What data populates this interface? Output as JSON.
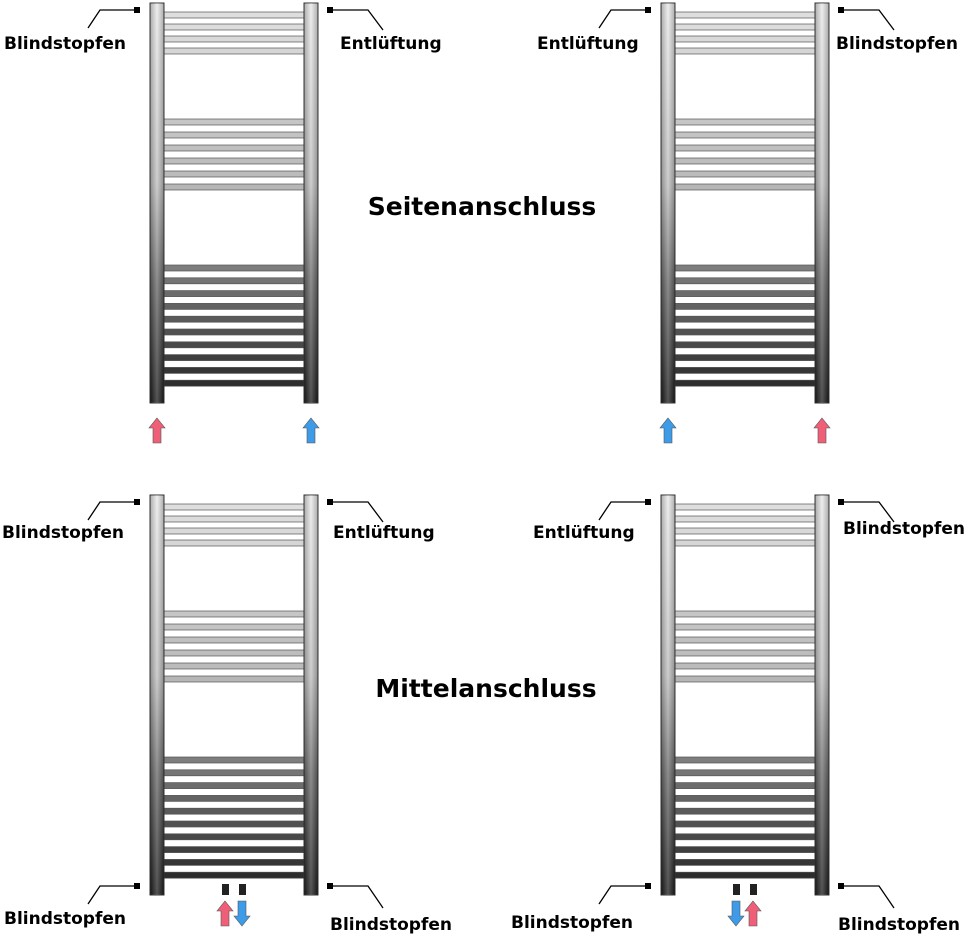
{
  "titles": {
    "side": "Seitenanschluss",
    "center": "Mittelanschluss"
  },
  "colors": {
    "supply": "#ef5f78",
    "return": "#3d9be8",
    "rail_light": "#e6e6e6",
    "rail_dark": "#1c1c1c"
  },
  "diagrams": [
    {
      "connection": "side",
      "labels": {
        "top_left": "Blindstopfen",
        "top_right": "Entlüftung"
      },
      "arrows": [
        "supply-up",
        "return-up"
      ]
    },
    {
      "connection": "side",
      "labels": {
        "top_left": "Entlüftung",
        "top_right": "Blindstopfen"
      },
      "arrows": [
        "return-up",
        "supply-up"
      ]
    },
    {
      "connection": "center",
      "labels": {
        "top_left": "Blindstopfen",
        "top_right": "Entlüftung",
        "bottom_left": "Blindstopfen",
        "bottom_right": "Blindstopfen"
      },
      "arrows": [
        "supply-up",
        "return-down"
      ]
    },
    {
      "connection": "center",
      "labels": {
        "top_left": "Entlüftung",
        "top_right": "Blindstopfen",
        "bottom_left": "Blindstopfen",
        "bottom_right": "Blindstopfen"
      },
      "arrows": [
        "return-down",
        "supply-up"
      ]
    }
  ]
}
